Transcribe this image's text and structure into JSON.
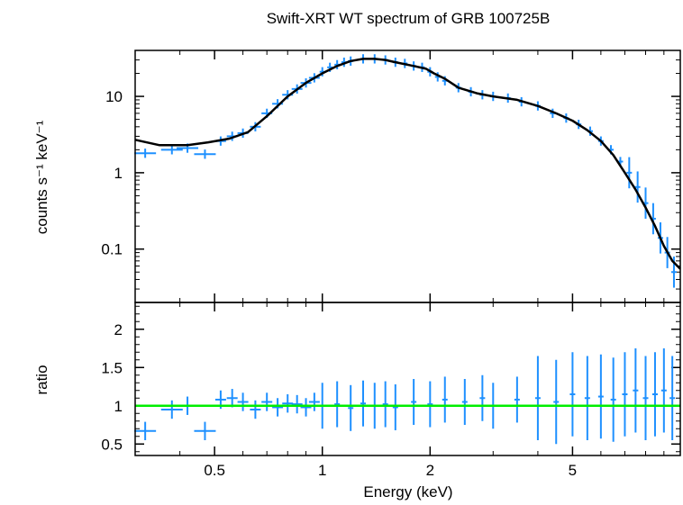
{
  "chart_data": {
    "type": "scatter",
    "title": "Swift-XRT WT spectrum of GRB 100725B",
    "xlabel": "Energy (keV)",
    "xscale": "log",
    "xlim": [
      0.3,
      10
    ],
    "x_ticks": [
      0.5,
      1,
      2,
      5
    ],
    "x_tick_labels": [
      "0.5",
      "1",
      "2",
      "5"
    ],
    "colors": {
      "data": "#1e90ff",
      "model": "#000000",
      "unity": "#00ee00"
    },
    "panels": [
      {
        "name": "spectrum",
        "ylabel": "counts s⁻¹ keV⁻¹",
        "yscale": "log",
        "ylim": [
          0.02,
          40
        ],
        "y_ticks": [
          0.1,
          1,
          10
        ],
        "y_tick_labels": [
          "0.1",
          "1",
          "10"
        ],
        "model": {
          "x": [
            0.3,
            0.35,
            0.42,
            0.48,
            0.55,
            0.62,
            0.7,
            0.8,
            0.9,
            1.0,
            1.1,
            1.2,
            1.3,
            1.4,
            1.5,
            1.6,
            1.8,
            1.95,
            2.05,
            2.2,
            2.4,
            2.7,
            3.0,
            3.5,
            4.0,
            4.5,
            5.0,
            5.5,
            6.0,
            6.5,
            7.0,
            7.5,
            8.0,
            8.5,
            9.0,
            9.5,
            10.0
          ],
          "y": [
            2.7,
            2.3,
            2.3,
            2.5,
            2.8,
            3.4,
            5.5,
            10.0,
            15.0,
            20.0,
            25.0,
            29.0,
            31.0,
            31.0,
            30.0,
            28.0,
            25.0,
            23.0,
            20.0,
            17.0,
            13.0,
            11.0,
            10.0,
            9.0,
            7.5,
            6.0,
            4.8,
            3.6,
            2.6,
            1.7,
            1.0,
            0.6,
            0.35,
            0.2,
            0.11,
            0.07,
            0.055
          ]
        },
        "data": {
          "x": [
            0.32,
            0.38,
            0.42,
            0.47,
            0.52,
            0.56,
            0.6,
            0.65,
            0.7,
            0.75,
            0.8,
            0.85,
            0.9,
            0.95,
            1.0,
            1.05,
            1.1,
            1.15,
            1.2,
            1.3,
            1.4,
            1.5,
            1.6,
            1.7,
            1.8,
            1.9,
            2.0,
            2.1,
            2.2,
            2.4,
            2.6,
            2.8,
            3.0,
            3.3,
            3.6,
            4.0,
            4.4,
            4.8,
            5.2,
            5.6,
            6.0,
            6.4,
            6.8,
            7.2,
            7.6,
            8.0,
            8.4,
            8.8,
            9.2,
            9.6
          ],
          "y": [
            1.8,
            2.0,
            2.1,
            1.75,
            2.6,
            3.0,
            3.3,
            4.0,
            6.0,
            8.0,
            10.5,
            12.5,
            15.0,
            17.5,
            21.0,
            24.0,
            26.0,
            28.0,
            29.0,
            31.0,
            31.0,
            30.0,
            28.0,
            27.0,
            25.0,
            24.0,
            21.0,
            18.0,
            16.0,
            13.0,
            11.5,
            10.5,
            10.0,
            9.5,
            8.5,
            7.5,
            6.0,
            5.2,
            4.3,
            3.5,
            2.6,
            2.0,
            1.4,
            1.0,
            0.65,
            0.4,
            0.25,
            0.14,
            0.09,
            0.05
          ]
        }
      },
      {
        "name": "ratio",
        "ylabel": "ratio",
        "yscale": "linear",
        "ylim": [
          0.35,
          2.35
        ],
        "y_ticks": [
          0.5,
          1,
          1.5,
          2
        ],
        "y_tick_labels": [
          "0.5",
          "1",
          "1.5",
          "2"
        ],
        "unity": 1,
        "data": {
          "x": [
            0.32,
            0.38,
            0.42,
            0.47,
            0.52,
            0.56,
            0.6,
            0.65,
            0.7,
            0.75,
            0.8,
            0.85,
            0.9,
            0.95,
            1.0,
            1.1,
            1.2,
            1.3,
            1.4,
            1.5,
            1.6,
            1.8,
            2.0,
            2.2,
            2.5,
            2.8,
            3.0,
            3.5,
            4.0,
            4.5,
            5.0,
            5.5,
            6.0,
            6.5,
            7.0,
            7.5,
            8.0,
            8.5,
            9.0,
            9.5
          ],
          "y": [
            0.67,
            0.95,
            1.0,
            0.67,
            1.08,
            1.1,
            1.05,
            0.95,
            1.05,
            0.98,
            1.03,
            1.02,
            0.98,
            1.05,
            1.0,
            1.02,
            0.97,
            1.03,
            1.0,
            1.02,
            0.98,
            1.05,
            1.02,
            1.08,
            1.05,
            1.1,
            1.0,
            1.08,
            1.1,
            1.05,
            1.15,
            1.1,
            1.12,
            1.08,
            1.15,
            1.2,
            1.1,
            1.15,
            1.2,
            1.1
          ]
        }
      }
    ]
  }
}
